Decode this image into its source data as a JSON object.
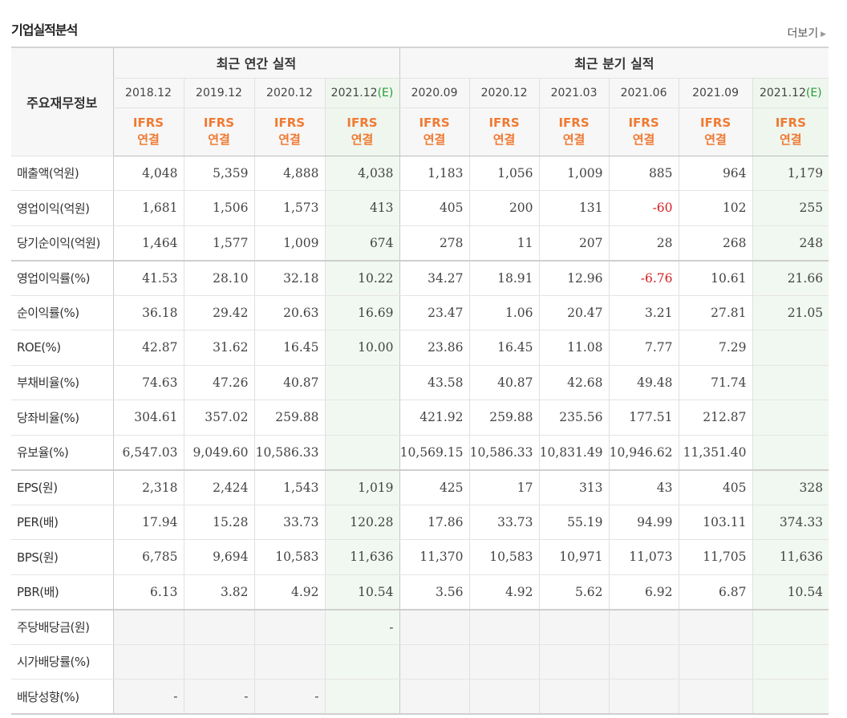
{
  "title": "기업실적분석",
  "more_label": "더보기",
  "header": {
    "label": "주요재무정보",
    "annual_group": "최근 연간 실적",
    "quarter_group": "최근 분기 실적",
    "annual_dates": [
      {
        "date": "2018.12",
        "est": ""
      },
      {
        "date": "2019.12",
        "est": ""
      },
      {
        "date": "2020.12",
        "est": ""
      },
      {
        "date": "2021.12",
        "est": "(E)"
      }
    ],
    "quarter_dates": [
      {
        "date": "2020.09",
        "est": ""
      },
      {
        "date": "2020.12",
        "est": ""
      },
      {
        "date": "2021.03",
        "est": ""
      },
      {
        "date": "2021.06",
        "est": ""
      },
      {
        "date": "2021.09",
        "est": ""
      },
      {
        "date": "2021.12",
        "est": "(E)"
      }
    ],
    "ifrs_line1": "IFRS",
    "ifrs_line2": "연결"
  },
  "rows": [
    {
      "label": "매출액(억원)",
      "values": [
        "4,048",
        "5,359",
        "4,888",
        "4,038",
        "1,183",
        "1,056",
        "1,009",
        "885",
        "964",
        "1,179"
      ]
    },
    {
      "label": "영업이익(억원)",
      "values": [
        "1,681",
        "1,506",
        "1,573",
        "413",
        "405",
        "200",
        "131",
        "-60",
        "102",
        "255"
      ]
    },
    {
      "label": "당기순이익(억원)",
      "values": [
        "1,464",
        "1,577",
        "1,009",
        "674",
        "278",
        "11",
        "207",
        "28",
        "268",
        "248"
      ]
    },
    {
      "label": "영업이익률(%)",
      "values": [
        "41.53",
        "28.10",
        "32.18",
        "10.22",
        "34.27",
        "18.91",
        "12.96",
        "-6.76",
        "10.61",
        "21.66"
      ]
    },
    {
      "label": "순이익률(%)",
      "values": [
        "36.18",
        "29.42",
        "20.63",
        "16.69",
        "23.47",
        "1.06",
        "20.47",
        "3.21",
        "27.81",
        "21.05"
      ]
    },
    {
      "label": "ROE(%)",
      "values": [
        "42.87",
        "31.62",
        "16.45",
        "10.00",
        "23.86",
        "16.45",
        "11.08",
        "7.77",
        "7.29",
        ""
      ]
    },
    {
      "label": "부채비율(%)",
      "values": [
        "74.63",
        "47.26",
        "40.87",
        "",
        "43.58",
        "40.87",
        "42.68",
        "49.48",
        "71.74",
        ""
      ]
    },
    {
      "label": "당좌비율(%)",
      "values": [
        "304.61",
        "357.02",
        "259.88",
        "",
        "421.92",
        "259.88",
        "235.56",
        "177.51",
        "212.87",
        ""
      ]
    },
    {
      "label": "유보율(%)",
      "values": [
        "6,547.03",
        "9,049.60",
        "10,586.33",
        "",
        "10,569.15",
        "10,586.33",
        "10,831.49",
        "10,946.62",
        "11,351.40",
        ""
      ]
    },
    {
      "label": "EPS(원)",
      "values": [
        "2,318",
        "2,424",
        "1,543",
        "1,019",
        "425",
        "17",
        "313",
        "43",
        "405",
        "328"
      ]
    },
    {
      "label": "PER(배)",
      "values": [
        "17.94",
        "15.28",
        "33.73",
        "120.28",
        "17.86",
        "33.73",
        "55.19",
        "94.99",
        "103.11",
        "374.33"
      ]
    },
    {
      "label": "BPS(원)",
      "values": [
        "6,785",
        "9,694",
        "10,583",
        "11,636",
        "11,370",
        "10,583",
        "10,971",
        "11,073",
        "11,705",
        "11,636"
      ]
    },
    {
      "label": "PBR(배)",
      "values": [
        "6.13",
        "3.82",
        "4.92",
        "10.54",
        "3.56",
        "4.92",
        "5.62",
        "6.92",
        "6.87",
        "10.54"
      ]
    },
    {
      "label": "주당배당금(원)",
      "values": [
        "",
        "",
        "",
        "-",
        "",
        "",
        "",
        "",
        "",
        ""
      ]
    },
    {
      "label": "시가배당률(%)",
      "values": [
        "",
        "",
        "",
        "",
        "",
        "",
        "",
        "",
        "",
        ""
      ]
    },
    {
      "label": "배당성향(%)",
      "values": [
        "-",
        "-",
        "-",
        "",
        "",
        "",
        "",
        "",
        "",
        ""
      ]
    }
  ],
  "colors": {
    "ifrs": "#f07a33",
    "estimate": "#2a9a35",
    "negative": "#d52020"
  }
}
